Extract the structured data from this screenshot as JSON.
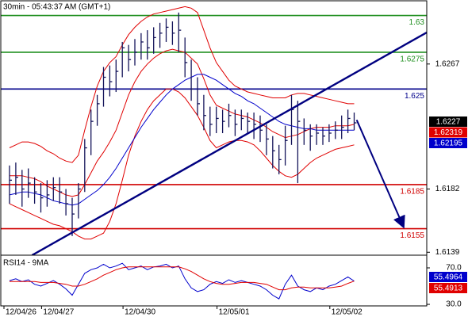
{
  "chart_data": [
    {
      "type": "ohlc",
      "title": "30min - 05:43:37 AM (GMT+1)",
      "categories": [
        "12/04/26",
        null,
        null,
        null,
        null,
        null,
        "12/04/27",
        null,
        null,
        null,
        null,
        null,
        null,
        null,
        null,
        null,
        null,
        null,
        null,
        "12/04/30",
        null,
        null,
        null,
        null,
        null,
        null,
        null,
        null,
        null,
        null,
        null,
        null,
        null,
        null,
        "12/05/01",
        null,
        null,
        null,
        null,
        null,
        null,
        null,
        null,
        null,
        null,
        null,
        null,
        null,
        null,
        null,
        null,
        null,
        "12/05/02",
        null,
        null,
        null
      ],
      "high": [
        1.6198,
        1.62,
        1.6195,
        1.6196,
        1.619,
        1.6186,
        1.6188,
        1.619,
        1.619,
        1.6182,
        1.6176,
        1.6186,
        1.6216,
        1.6236,
        1.6246,
        1.6265,
        1.6266,
        1.627,
        1.6282,
        1.628,
        1.6284,
        1.6288,
        1.629,
        1.6292,
        1.6295,
        1.6298,
        1.6296,
        1.6302,
        1.6285,
        1.627,
        1.6258,
        1.6246,
        1.6238,
        1.6238,
        1.6236,
        1.624,
        1.6236,
        1.6236,
        1.6234,
        1.6234,
        1.6232,
        1.6226,
        1.6218,
        1.6212,
        1.6225,
        1.6246,
        1.6242,
        1.623,
        1.6226,
        1.6226,
        1.6224,
        1.6226,
        1.6228,
        1.6232,
        1.6236,
        1.6234
      ],
      "low": [
        1.6172,
        1.6178,
        1.617,
        1.6176,
        1.6172,
        1.6166,
        1.617,
        1.6174,
        1.6172,
        1.6164,
        1.615,
        1.6162,
        1.618,
        1.6205,
        1.6225,
        1.6238,
        1.6245,
        1.6248,
        1.6258,
        1.6262,
        1.6266,
        1.627,
        1.627,
        1.6274,
        1.6278,
        1.6282,
        1.628,
        1.6275,
        1.6258,
        1.6242,
        1.6232,
        1.6222,
        1.6218,
        1.622,
        1.622,
        1.6224,
        1.6218,
        1.6222,
        1.622,
        1.6216,
        1.6214,
        1.6205,
        1.6196,
        1.6192,
        1.6198,
        1.6212,
        1.6186,
        1.6212,
        1.6208,
        1.6212,
        1.6212,
        1.6214,
        1.6216,
        1.6216,
        1.622,
        1.6222
      ],
      "close": [
        1.6188,
        1.619,
        1.6182,
        1.6186,
        1.618,
        1.6176,
        1.6178,
        1.6183,
        1.618,
        1.6172,
        1.6165,
        1.6182,
        1.621,
        1.6228,
        1.624,
        1.6258,
        1.6255,
        1.6262,
        1.6278,
        1.627,
        1.6275,
        1.6282,
        1.6278,
        1.6285,
        1.6288,
        1.6292,
        1.6288,
        1.629,
        1.6268,
        1.625,
        1.624,
        1.6232,
        1.6226,
        1.623,
        1.6228,
        1.6232,
        1.6226,
        1.623,
        1.6228,
        1.6226,
        1.6222,
        1.6216,
        1.6208,
        1.6202,
        1.6215,
        1.6236,
        1.6228,
        1.6222,
        1.6218,
        1.622,
        1.6218,
        1.622,
        1.6222,
        1.6224,
        1.623,
        1.6227
      ],
      "bar_color": "#14145a",
      "overlays": [
        {
          "color": "#e00000",
          "values": [
            1.621,
            1.6212,
            1.6214,
            1.6214,
            1.6213,
            1.6211,
            1.6208,
            1.6206,
            1.6203,
            1.6201,
            1.62,
            1.6205,
            1.6222,
            1.6238,
            1.6252,
            1.6262,
            1.6268,
            1.6272,
            1.628,
            1.6287,
            1.6292,
            1.6296,
            1.6299,
            1.6301,
            1.6302,
            1.6303,
            1.6304,
            1.6305,
            1.6306,
            1.6305,
            1.6302,
            1.629,
            1.6278,
            1.6268,
            1.6262,
            1.6256,
            1.6252,
            1.625,
            1.6248,
            1.6247,
            1.6246,
            1.6245,
            1.6244,
            1.6244,
            1.6244,
            1.6246,
            1.6247,
            1.6247,
            1.6246,
            1.6245,
            1.6244,
            1.6243,
            1.6242,
            1.6241,
            1.624,
            1.624
          ]
        },
        {
          "color": "#e00000",
          "values": [
            1.6172,
            1.617,
            1.6168,
            1.6166,
            1.6164,
            1.6162,
            1.616,
            1.6158,
            1.6157,
            1.6155,
            1.6153,
            1.615,
            1.6148,
            1.6148,
            1.615,
            1.6152,
            1.616,
            1.6172,
            1.6188,
            1.6205,
            1.6218,
            1.6228,
            1.6236,
            1.6242,
            1.6246,
            1.625,
            1.625,
            1.6248,
            1.6244,
            1.6238,
            1.6232,
            1.6224,
            1.6215,
            1.621,
            1.6212,
            1.6214,
            1.6215,
            1.6215,
            1.6214,
            1.6212,
            1.6208,
            1.6203,
            1.6198,
            1.6194,
            1.6191,
            1.619,
            1.6192,
            1.6196,
            1.62,
            1.6203,
            1.6205,
            1.6207,
            1.6209,
            1.621,
            1.6211,
            1.6212
          ]
        },
        {
          "color": "#e00000",
          "values": [
            1.6191,
            1.6191,
            1.6191,
            1.619,
            1.6189,
            1.6187,
            1.6184,
            1.6182,
            1.618,
            1.6178,
            1.6177,
            1.6178,
            1.6185,
            1.6193,
            1.6201,
            1.6207,
            1.6214,
            1.6222,
            1.6234,
            1.6246,
            1.6255,
            1.6262,
            1.6267,
            1.6271,
            1.6274,
            1.6276,
            1.6277,
            1.6276,
            1.6275,
            1.6271,
            1.6267,
            1.6257,
            1.6246,
            1.6239,
            1.6237,
            1.6235,
            1.6233,
            1.6232,
            1.6231,
            1.6229,
            1.6227,
            1.6224,
            1.6221,
            1.6219,
            1.6217,
            1.6218,
            1.6219,
            1.6221,
            1.6223,
            1.6224,
            1.6224,
            1.6224,
            1.6225,
            1.6225,
            1.6225,
            1.6226
          ]
        },
        {
          "color": "#0000cc",
          "values": [
            1.6178,
            1.6179,
            1.618,
            1.618,
            1.6179,
            1.6178,
            1.6176,
            1.6174,
            1.6173,
            1.6172,
            1.6171,
            1.6172,
            1.6175,
            1.6178,
            1.6181,
            1.6185,
            1.619,
            1.6196,
            1.6203,
            1.621,
            1.6217,
            1.6224,
            1.623,
            1.6236,
            1.6241,
            1.6246,
            1.625,
            1.6253,
            1.6256,
            1.6258,
            1.626,
            1.626,
            1.6258,
            1.6256,
            1.6253,
            1.625,
            1.6247,
            1.6245,
            1.6242,
            1.624,
            1.6237,
            1.6234,
            1.6231,
            1.6228,
            1.6226,
            1.6225,
            1.6224,
            1.6223,
            1.6223,
            1.6222,
            1.6222,
            1.6222,
            1.6222,
            1.6222,
            1.6222,
            1.6222
          ]
        }
      ],
      "levels": [
        {
          "value": 1.63,
          "color": "#1f8f1f"
        },
        {
          "value": 1.6275,
          "color": "#1f8f1f"
        },
        {
          "value": 1.625,
          "color": "#00008b"
        },
        {
          "value": 1.6185,
          "color": "#d00000"
        },
        {
          "value": 1.6155,
          "color": "#d00000"
        }
      ],
      "trendline": {
        "color": "#000080",
        "x": [
          3.6,
          66.6
        ],
        "values": [
          1.6137,
          1.62885
        ]
      },
      "forecast_arrow": {
        "color": "#000080",
        "x": [
          55.4,
          62.8
        ],
        "values": [
          1.6229,
          1.6157
        ]
      },
      "price_labels": [
        {
          "value": 1.6227,
          "color": "#000000"
        },
        {
          "value": 1.62319,
          "color": "#e00000"
        },
        {
          "value": 1.62195,
          "color": "#0000cc"
        }
      ],
      "ylim": [
        1.6137,
        1.631
      ],
      "yticks": [
        1.6267,
        1.6182,
        1.6139
      ]
    },
    {
      "type": "line",
      "title": "RSI14 - 9MA",
      "series": [
        {
          "color": "#0000cc",
          "values": [
            56,
            58,
            55,
            57,
            52,
            50,
            53,
            56,
            52,
            47,
            40,
            52,
            64,
            68,
            70,
            74,
            70,
            72,
            75,
            68,
            70,
            72,
            68,
            71,
            72,
            74,
            70,
            72,
            58,
            48,
            44,
            46,
            52,
            55,
            53,
            57,
            54,
            56,
            54,
            52,
            50,
            46,
            40,
            36,
            52,
            62,
            50,
            46,
            44,
            48,
            46,
            50,
            52,
            56,
            60,
            55.4964
          ]
        },
        {
          "color": "#e00000",
          "values": [
            55,
            55,
            55,
            55,
            55,
            54,
            54,
            54,
            53,
            52,
            50,
            50,
            52,
            55,
            58,
            62,
            65,
            68,
            70,
            71,
            71,
            71,
            71,
            71,
            71,
            71,
            71,
            71,
            69,
            66,
            62,
            58,
            55,
            53,
            52,
            52,
            53,
            54,
            54,
            54,
            53,
            52,
            49,
            46,
            46,
            48,
            49,
            49,
            48,
            48,
            48,
            48,
            49,
            50,
            53,
            55.4913
          ]
        }
      ],
      "ylim": [
        28.3,
        83.9
      ],
      "yticks": [
        {
          "value": 70,
          "label": "70.0"
        },
        {
          "value": 30,
          "label": "30.0"
        }
      ]
    }
  ]
}
